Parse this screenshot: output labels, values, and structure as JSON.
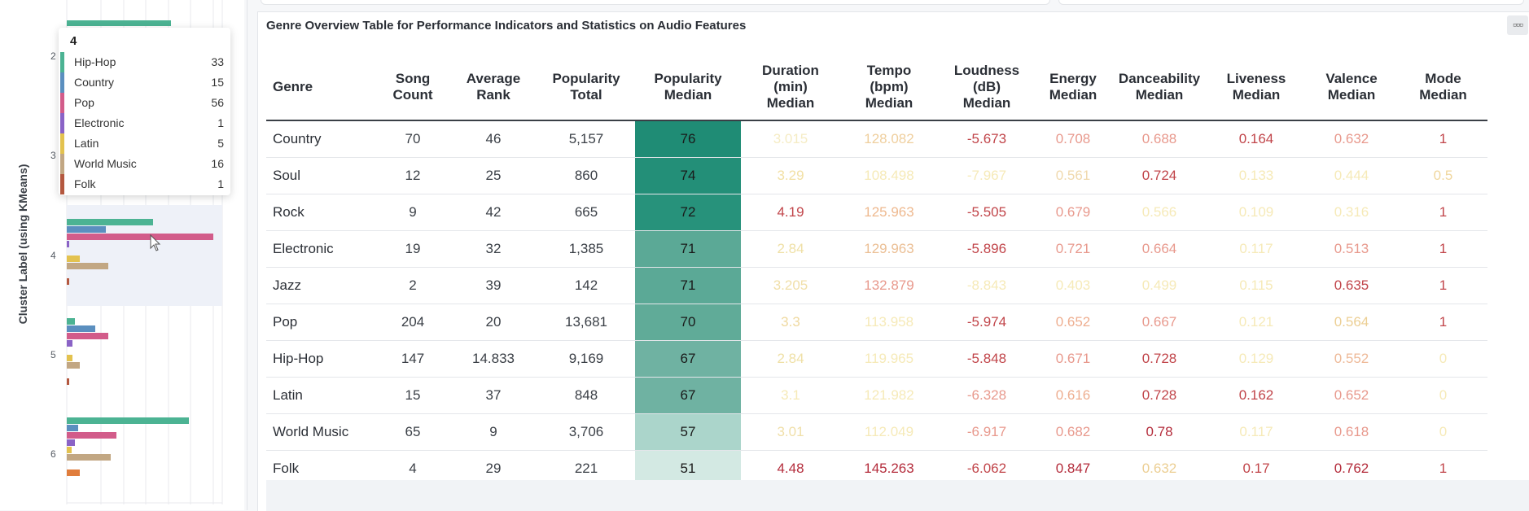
{
  "left_chart": {
    "y_axis_title": "Cluster Label (using KMeans)",
    "tick_labels": [
      "2",
      "3",
      "4",
      "5",
      "6"
    ],
    "colors": {
      "hiphop": "#4cb393",
      "country": "#5b8fbf",
      "pop": "#d25c8a",
      "electronic": "#8a63c6",
      "latin": "#e3c24f",
      "world": "#c2a783",
      "folk": "#b4583f",
      "extra": "#e07d3c"
    }
  },
  "tooltip": {
    "title": "4",
    "rows": [
      {
        "name": "Hip-Hop",
        "value": "33",
        "color": "#4cb393"
      },
      {
        "name": "Country",
        "value": "15",
        "color": "#5b8fbf"
      },
      {
        "name": "Pop",
        "value": "56",
        "color": "#d25c8a"
      },
      {
        "name": "Electronic",
        "value": "1",
        "color": "#8a63c6"
      },
      {
        "name": "Latin",
        "value": "5",
        "color": "#e3c24f"
      },
      {
        "name": "World Music",
        "value": "16",
        "color": "#c2a783"
      },
      {
        "name": "Folk",
        "value": "1",
        "color": "#b4583f"
      }
    ]
  },
  "main": {
    "title": "Genre Overview Table for Performance Indicators and Statistics on Audio Features",
    "menu_icon": "ellipsis-icon",
    "headers": {
      "genre": "Genre",
      "song_count": [
        "Song",
        "Count"
      ],
      "avg_rank": [
        "Average",
        "Rank"
      ],
      "pop_total": [
        "Popularity",
        "Total"
      ],
      "pop_median": [
        "Popularity",
        "Median"
      ],
      "duration": [
        "Duration",
        "(min)",
        "Median"
      ],
      "tempo": [
        "Tempo",
        "(bpm)",
        "Median"
      ],
      "loudness": [
        "Loudness",
        "(dB)",
        "Median"
      ],
      "energy": [
        "Energy",
        "Median"
      ],
      "dance": [
        "Danceability",
        "Median"
      ],
      "liveness": [
        "Liveness",
        "Median"
      ],
      "valence": [
        "Valence",
        "Median"
      ],
      "mode": [
        "Mode",
        "Median"
      ]
    },
    "rows": [
      {
        "genre": "Country",
        "song_count": "70",
        "avg_rank": "46",
        "pop_total": "5,157",
        "pop_median": "76",
        "duration": "3.015",
        "tempo": "128.082",
        "loudness": "-5.673",
        "energy": "0.708",
        "dance": "0.688",
        "liveness": "0.164",
        "valence": "0.632",
        "mode": "1"
      },
      {
        "genre": "Soul",
        "song_count": "12",
        "avg_rank": "25",
        "pop_total": "860",
        "pop_median": "74",
        "duration": "3.29",
        "tempo": "108.498",
        "loudness": "-7.967",
        "energy": "0.561",
        "dance": "0.724",
        "liveness": "0.133",
        "valence": "0.444",
        "mode": "0.5"
      },
      {
        "genre": "Rock",
        "song_count": "9",
        "avg_rank": "42",
        "pop_total": "665",
        "pop_median": "72",
        "duration": "4.19",
        "tempo": "125.963",
        "loudness": "-5.505",
        "energy": "0.679",
        "dance": "0.566",
        "liveness": "0.109",
        "valence": "0.316",
        "mode": "1"
      },
      {
        "genre": "Electronic",
        "song_count": "19",
        "avg_rank": "32",
        "pop_total": "1,385",
        "pop_median": "71",
        "duration": "2.84",
        "tempo": "129.963",
        "loudness": "-5.896",
        "energy": "0.721",
        "dance": "0.664",
        "liveness": "0.117",
        "valence": "0.513",
        "mode": "1"
      },
      {
        "genre": "Jazz",
        "song_count": "2",
        "avg_rank": "39",
        "pop_total": "142",
        "pop_median": "71",
        "duration": "3.205",
        "tempo": "132.879",
        "loudness": "-8.843",
        "energy": "0.403",
        "dance": "0.499",
        "liveness": "0.115",
        "valence": "0.635",
        "mode": "1"
      },
      {
        "genre": "Pop",
        "song_count": "204",
        "avg_rank": "20",
        "pop_total": "13,681",
        "pop_median": "70",
        "duration": "3.3",
        "tempo": "113.958",
        "loudness": "-5.974",
        "energy": "0.652",
        "dance": "0.667",
        "liveness": "0.121",
        "valence": "0.564",
        "mode": "1"
      },
      {
        "genre": "Hip-Hop",
        "song_count": "147",
        "avg_rank": "14.833",
        "pop_total": "9,169",
        "pop_median": "67",
        "duration": "2.84",
        "tempo": "119.965",
        "loudness": "-5.848",
        "energy": "0.671",
        "dance": "0.728",
        "liveness": "0.129",
        "valence": "0.552",
        "mode": "0"
      },
      {
        "genre": "Latin",
        "song_count": "15",
        "avg_rank": "37",
        "pop_total": "848",
        "pop_median": "67",
        "duration": "3.1",
        "tempo": "121.982",
        "loudness": "-6.328",
        "energy": "0.616",
        "dance": "0.728",
        "liveness": "0.162",
        "valence": "0.652",
        "mode": "0"
      },
      {
        "genre": "World Music",
        "song_count": "65",
        "avg_rank": "9",
        "pop_total": "3,706",
        "pop_median": "57",
        "duration": "3.01",
        "tempo": "112.049",
        "loudness": "-6.917",
        "energy": "0.682",
        "dance": "0.78",
        "liveness": "0.117",
        "valence": "0.618",
        "mode": "0"
      },
      {
        "genre": "Folk",
        "song_count": "4",
        "avg_rank": "29",
        "pop_total": "221",
        "pop_median": "51",
        "duration": "4.48",
        "tempo": "145.263",
        "loudness": "-6.062",
        "energy": "0.847",
        "dance": "0.632",
        "liveness": "0.17",
        "valence": "0.762",
        "mode": "1"
      }
    ]
  }
}
